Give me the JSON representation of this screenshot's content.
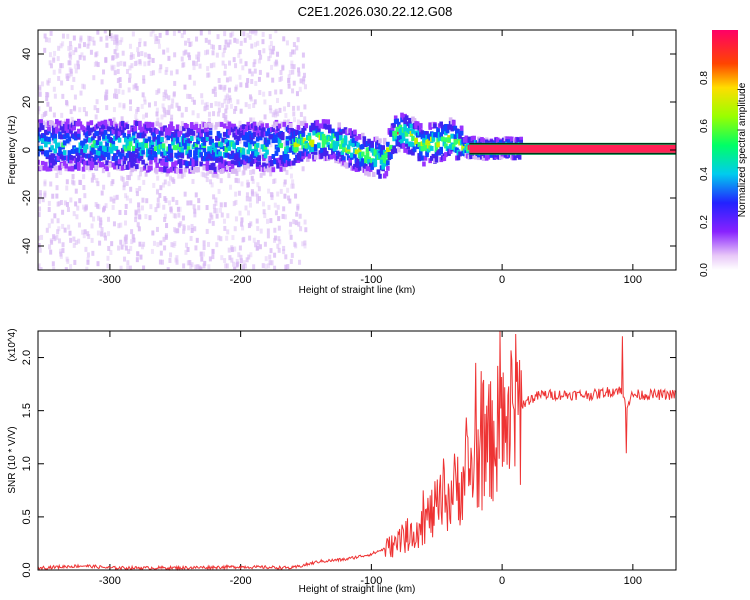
{
  "title": "C2E1.2026.030.22.12.G08",
  "chart_data": [
    {
      "type": "heatmap",
      "title": "C2E1.2026.030.22.12.G08",
      "xlabel": "Height of straight line (km)",
      "ylabel": "Frequency (Hz)",
      "xlim": [
        -355,
        133
      ],
      "ylim": [
        -50,
        50
      ],
      "xticks": [
        -300,
        -200,
        -100,
        0,
        100
      ],
      "yticks": [
        -40,
        -20,
        0,
        20,
        40
      ],
      "colorbar": {
        "label": "Normalized spectral amplitude",
        "range": [
          0,
          1
        ],
        "ticks": [
          "0.0",
          "0.2",
          "0.4",
          "0.6",
          "0.8"
        ]
      },
      "ridge": {
        "x": [
          -355,
          -300,
          -250,
          -200,
          -160,
          -150,
          -130,
          -110,
          -90,
          -80,
          -70,
          -60,
          -50,
          -40,
          -30,
          -20,
          -10,
          0,
          10,
          30,
          60,
          90,
          133
        ],
        "freq": [
          2,
          2,
          1,
          1,
          2,
          4,
          4,
          -1,
          -4,
          8,
          6,
          2,
          3,
          5,
          1,
          1,
          0,
          1,
          0.5,
          0.5,
          0.5,
          0.5,
          0.5
        ]
      }
    },
    {
      "type": "line",
      "xlabel": "Height of straight line (km)",
      "ylabel": "SNR (10 * V/V)",
      "y_scale_label": "(x10^4)",
      "xlim": [
        -355,
        133
      ],
      "ylim": [
        0,
        2.25
      ],
      "xticks": [
        -300,
        -200,
        -100,
        0,
        100
      ],
      "yticks": [
        "0.0",
        "0.5",
        "1.0",
        "1.5",
        "2.0"
      ],
      "series": [
        {
          "name": "SNR",
          "color": "#ee3333",
          "x": [
            -355,
            -320,
            -300,
            -250,
            -200,
            -160,
            -140,
            -120,
            -100,
            -80,
            -60,
            -40,
            -30,
            -20,
            -10,
            0,
            10,
            20,
            30,
            50,
            70,
            90,
            95,
            100,
            110,
            133
          ],
          "values": [
            0.02,
            0.04,
            0.02,
            0.02,
            0.03,
            0.02,
            0.08,
            0.1,
            0.15,
            0.25,
            0.45,
            0.7,
            0.85,
            1.0,
            1.2,
            1.35,
            1.5,
            1.6,
            1.65,
            1.65,
            1.65,
            1.7,
            1.55,
            1.65,
            1.65,
            1.65
          ],
          "spikes": [
            [
              -20,
              1.95
            ],
            [
              -10,
              1.75
            ],
            [
              -45,
              1.05
            ],
            [
              92,
              2.2
            ],
            [
              95,
              1.1
            ]
          ]
        }
      ]
    }
  ]
}
